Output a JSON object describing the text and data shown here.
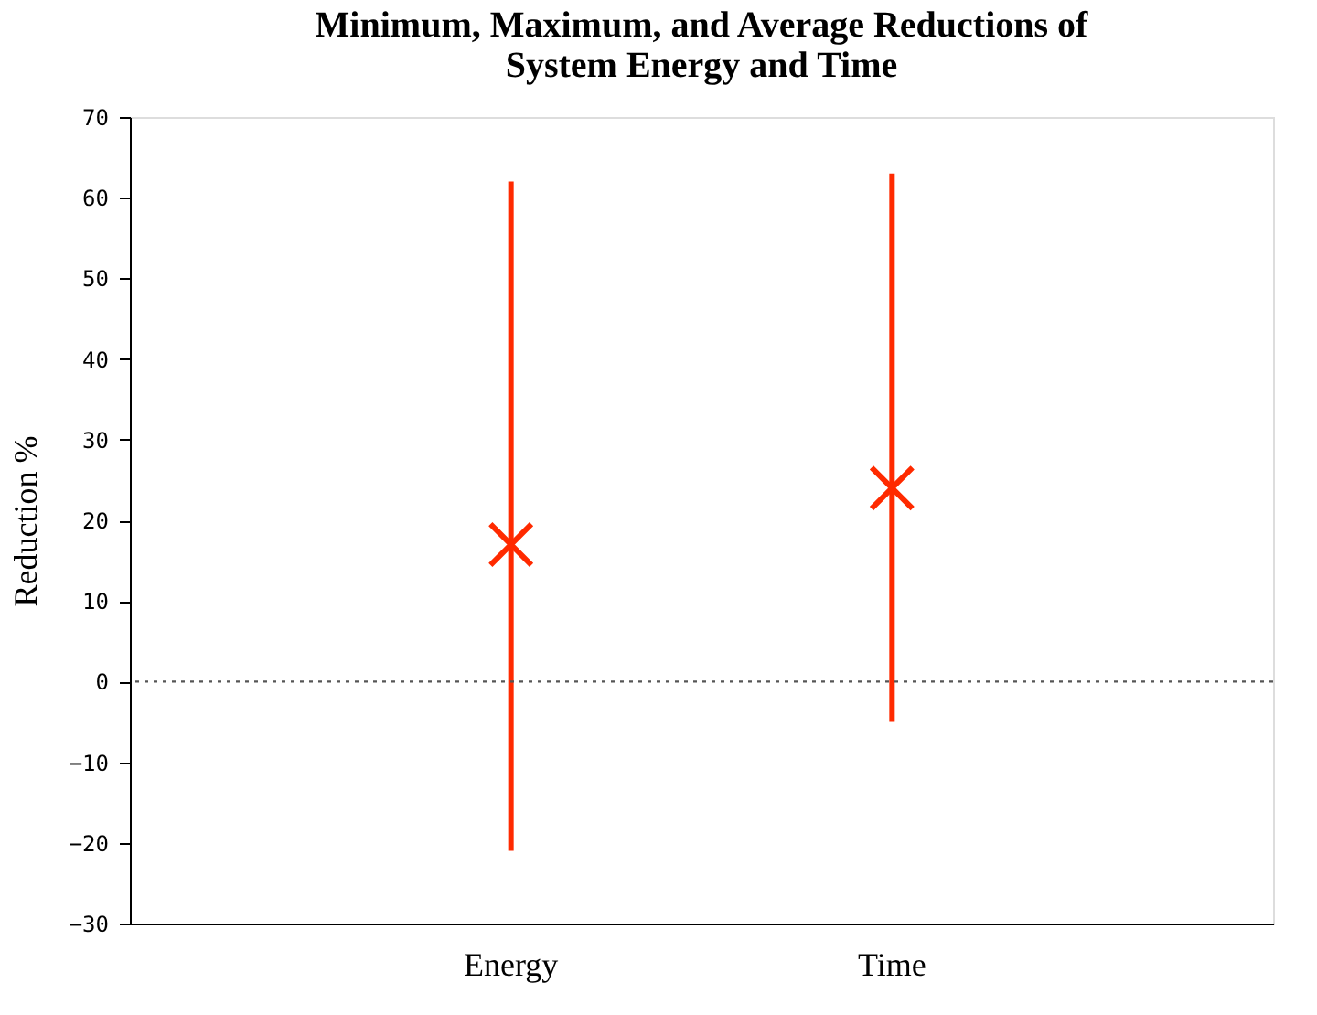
{
  "chart_data": {
    "type": "scatter",
    "title": "Minimum, Maximum, and Average Reductions of System Energy and Time",
    "ylabel": "Reduction %",
    "categories": [
      "Energy",
      "Time"
    ],
    "series": [
      {
        "color": "#ff2a00",
        "values": [
          17,
          24
        ],
        "errors": [
          [
            -21,
            62
          ],
          [
            -5,
            63
          ]
        ]
      }
    ],
    "ylim": [
      -30,
      70
    ],
    "yticks": [
      -30,
      -20,
      -10,
      0,
      10,
      20,
      30,
      40,
      50,
      60,
      70
    ],
    "ref_lines": [
      {
        "axis": "y",
        "value": 0,
        "color": "#555555",
        "line_style": "dotted"
      }
    ],
    "marker": "cross",
    "grid": false
  }
}
